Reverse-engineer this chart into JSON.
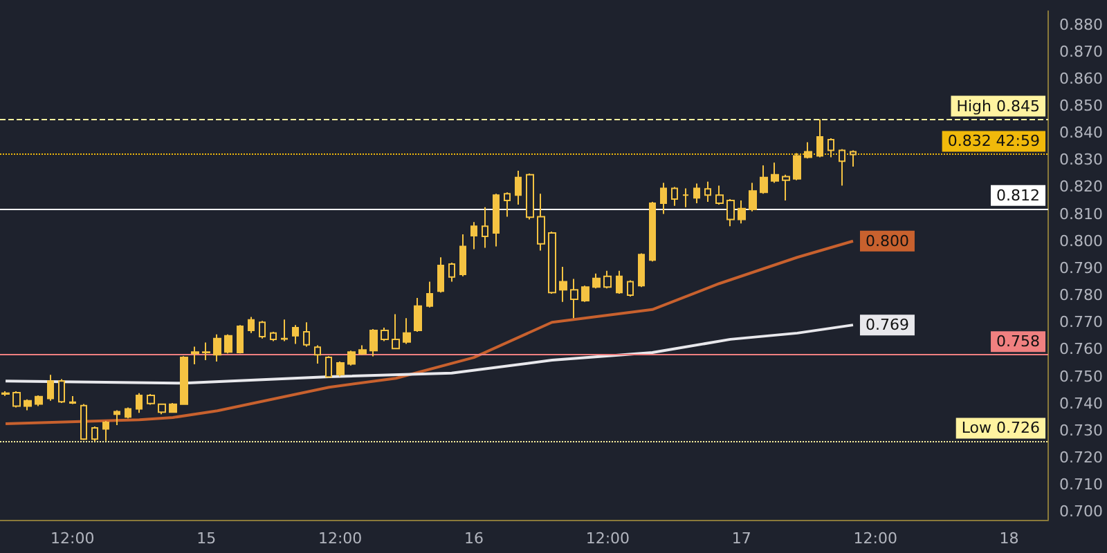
{
  "chart_data": {
    "type": "candlestick",
    "color": "#f5c342",
    "categories": [
      null,
      null,
      null,
      null,
      null,
      null,
      "12:00",
      null,
      null,
      null,
      null,
      null,
      null,
      null,
      null,
      null,
      null,
      null,
      "15",
      null,
      null,
      null,
      null,
      null,
      null,
      null,
      null,
      null,
      null,
      null,
      "12:00",
      null,
      null,
      null,
      null,
      null,
      null,
      null,
      null,
      null,
      null,
      null,
      "16",
      null,
      null,
      null,
      null,
      null,
      null,
      null,
      null,
      null,
      null,
      null,
      "12:00",
      null,
      null,
      null,
      null,
      null,
      null,
      null,
      null,
      null,
      null,
      null,
      "17",
      null,
      null,
      null,
      null,
      null,
      null,
      null,
      null,
      null,
      null,
      null,
      "12:00",
      null,
      null,
      null,
      null,
      null,
      null,
      null,
      null,
      null,
      null,
      null,
      "18",
      null,
      null,
      null
    ],
    "ohlc": [
      [
        0.7435,
        0.7445,
        0.7428,
        0.7438
      ],
      [
        0.744,
        0.7445,
        0.7385,
        0.739
      ],
      [
        0.739,
        0.7415,
        0.7375,
        0.741
      ],
      [
        0.7398,
        0.743,
        0.739,
        0.7425
      ],
      [
        0.7418,
        0.7506,
        0.741,
        0.7483
      ],
      [
        0.7483,
        0.749,
        0.7402,
        0.7406
      ],
      [
        0.7405,
        0.7427,
        0.7398,
        0.7402
      ],
      [
        0.7392,
        0.7398,
        0.7265,
        0.7268
      ],
      [
        0.731,
        0.7315,
        0.726,
        0.7268
      ],
      [
        0.7306,
        0.7335,
        0.7262,
        0.733
      ],
      [
        0.736,
        0.7375,
        0.732,
        0.737
      ],
      [
        0.735,
        0.7385,
        0.7345,
        0.738
      ],
      [
        0.738,
        0.7438,
        0.7365,
        0.743
      ],
      [
        0.743,
        0.7435,
        0.7395,
        0.74
      ],
      [
        0.7397,
        0.74,
        0.736,
        0.7368
      ],
      [
        0.7368,
        0.7402,
        0.7365,
        0.7397
      ],
      [
        0.7397,
        0.7575,
        0.7395,
        0.757
      ],
      [
        0.7585,
        0.761,
        0.7545,
        0.759
      ],
      [
        0.759,
        0.7625,
        0.756,
        0.7588
      ],
      [
        0.758,
        0.7655,
        0.7555,
        0.764
      ],
      [
        0.759,
        0.7655,
        0.7585,
        0.765
      ],
      [
        0.7588,
        0.769,
        0.7585,
        0.7685
      ],
      [
        0.767,
        0.772,
        0.766,
        0.7709
      ],
      [
        0.77,
        0.7705,
        0.764,
        0.7647
      ],
      [
        0.766,
        0.7665,
        0.763,
        0.7637
      ],
      [
        0.7638,
        0.771,
        0.763,
        0.764
      ],
      [
        0.765,
        0.769,
        0.762,
        0.768
      ],
      [
        0.7665,
        0.77,
        0.761,
        0.7617
      ],
      [
        0.7608,
        0.7615,
        0.7547,
        0.758
      ],
      [
        0.757,
        0.7575,
        0.7495,
        0.7498
      ],
      [
        0.7507,
        0.7555,
        0.75,
        0.755
      ],
      [
        0.7546,
        0.7595,
        0.754,
        0.759
      ],
      [
        0.7584,
        0.7615,
        0.758,
        0.7598
      ],
      [
        0.7595,
        0.7675,
        0.7574,
        0.767
      ],
      [
        0.767,
        0.768,
        0.763,
        0.7637
      ],
      [
        0.7637,
        0.773,
        0.76,
        0.7603
      ],
      [
        0.7627,
        0.7715,
        0.762,
        0.766
      ],
      [
        0.767,
        0.779,
        0.7665,
        0.776
      ],
      [
        0.776,
        0.785,
        0.7755,
        0.7805
      ],
      [
        0.7815,
        0.794,
        0.781,
        0.791
      ],
      [
        0.7915,
        0.792,
        0.785,
        0.7867
      ],
      [
        0.7877,
        0.8025,
        0.787,
        0.798
      ],
      [
        0.802,
        0.807,
        0.797,
        0.8055
      ],
      [
        0.8055,
        0.8125,
        0.7975,
        0.8017
      ],
      [
        0.803,
        0.8175,
        0.798,
        0.817
      ],
      [
        0.8175,
        0.818,
        0.809,
        0.815
      ],
      [
        0.817,
        0.826,
        0.8135,
        0.8235
      ],
      [
        0.8245,
        0.825,
        0.808,
        0.8088
      ],
      [
        0.809,
        0.8175,
        0.7965,
        0.799
      ],
      [
        0.803,
        0.8035,
        0.7805,
        0.781
      ],
      [
        0.782,
        0.7905,
        0.7775,
        0.785
      ],
      [
        0.782,
        0.786,
        0.7715,
        0.7785
      ],
      [
        0.778,
        0.7835,
        0.7775,
        0.783
      ],
      [
        0.783,
        0.788,
        0.7825,
        0.7862
      ],
      [
        0.787,
        0.789,
        0.7825,
        0.783
      ],
      [
        0.781,
        0.789,
        0.7805,
        0.787
      ],
      [
        0.785,
        0.7855,
        0.7795,
        0.78
      ],
      [
        0.7835,
        0.7955,
        0.783,
        0.795
      ],
      [
        0.793,
        0.8145,
        0.7925,
        0.814
      ],
      [
        0.814,
        0.8215,
        0.81,
        0.8195
      ],
      [
        0.8195,
        0.82,
        0.813,
        0.8155
      ],
      [
        0.817,
        0.8195,
        0.8125,
        0.817
      ],
      [
        0.816,
        0.8213,
        0.814,
        0.8195
      ],
      [
        0.8193,
        0.822,
        0.8145,
        0.817
      ],
      [
        0.817,
        0.8205,
        0.8135,
        0.814
      ],
      [
        0.815,
        0.8155,
        0.8055,
        0.808
      ],
      [
        0.808,
        0.815,
        0.8065,
        0.812
      ],
      [
        0.8117,
        0.8215,
        0.811,
        0.8185
      ],
      [
        0.818,
        0.828,
        0.8175,
        0.8235
      ],
      [
        0.8222,
        0.829,
        0.8215,
        0.8245
      ],
      [
        0.8238,
        0.8245,
        0.815,
        0.8225
      ],
      [
        0.823,
        0.8325,
        0.8225,
        0.8315
      ],
      [
        0.831,
        0.8365,
        0.8305,
        0.833
      ],
      [
        0.8315,
        0.845,
        0.831,
        0.8385
      ],
      [
        0.8375,
        0.838,
        0.831,
        0.8335
      ],
      [
        0.8335,
        0.834,
        0.8205,
        0.8295
      ],
      [
        0.833,
        0.8335,
        0.8275,
        0.832
      ],
      null,
      null,
      null,
      null,
      null,
      null,
      null,
      null,
      null,
      null,
      null,
      null,
      null,
      null,
      null,
      null,
      null
    ],
    "series": [
      {
        "type": "line",
        "color": "#c8612e",
        "values": [
          0.7325,
          null,
          null,
          null,
          null,
          null,
          null,
          null,
          null,
          null,
          null,
          null,
          0.734,
          null,
          null,
          0.7348,
          null,
          null,
          null,
          0.7373,
          null,
          null,
          null,
          null,
          null,
          null,
          null,
          null,
          null,
          0.746,
          null,
          null,
          null,
          null,
          null,
          0.7493,
          null,
          null,
          null,
          null,
          null,
          null,
          0.757,
          null,
          null,
          null,
          null,
          null,
          null,
          0.77,
          null,
          null,
          null,
          null,
          null,
          null,
          null,
          null,
          0.7747,
          null,
          null,
          null,
          null,
          null,
          0.7843,
          null,
          null,
          null,
          null,
          null,
          null,
          0.794,
          null,
          null,
          null,
          null,
          0.8,
          null,
          null,
          null,
          null,
          null,
          null,
          null,
          null,
          null,
          null,
          null,
          null,
          null,
          null,
          null,
          null,
          null
        ],
        "value_labels": [
          null,
          null,
          null,
          null,
          null,
          null,
          null,
          null,
          null,
          null,
          null,
          null,
          null,
          null,
          null,
          null,
          null,
          null,
          null,
          null,
          null,
          null,
          null,
          null,
          null,
          null,
          null,
          null,
          null,
          null,
          null,
          null,
          null,
          null,
          null,
          null,
          null,
          null,
          null,
          null,
          null,
          null,
          null,
          null,
          null,
          null,
          null,
          null,
          null,
          null,
          null,
          null,
          null,
          null,
          null,
          null,
          null,
          null,
          null,
          null,
          null,
          null,
          null,
          null,
          null,
          null,
          null,
          null,
          null,
          null,
          null,
          null,
          null,
          null,
          null,
          null,
          "0.800",
          null,
          null,
          null,
          null,
          null,
          null,
          null,
          null,
          null,
          null,
          null,
          null,
          null,
          null,
          null,
          null,
          null
        ]
      },
      {
        "type": "line",
        "color": "#e8e8ec",
        "values": [
          0.7483,
          null,
          null,
          null,
          null,
          null,
          null,
          null,
          null,
          null,
          null,
          null,
          null,
          null,
          null,
          null,
          0.7475,
          null,
          null,
          null,
          null,
          null,
          null,
          null,
          null,
          null,
          null,
          null,
          null,
          0.7499,
          null,
          null,
          null,
          null,
          null,
          null,
          null,
          null,
          null,
          null,
          0.7512,
          null,
          null,
          null,
          null,
          null,
          null,
          null,
          null,
          0.756,
          null,
          null,
          null,
          null,
          null,
          null,
          null,
          null,
          0.7588,
          null,
          null,
          null,
          null,
          null,
          null,
          0.7637,
          null,
          null,
          null,
          null,
          null,
          0.766,
          null,
          null,
          null,
          null,
          0.769,
          null,
          null,
          null,
          null,
          null,
          null,
          null,
          null,
          null,
          null,
          null,
          null,
          null,
          null,
          null,
          null,
          null
        ],
        "value_labels": [
          null,
          null,
          null,
          null,
          null,
          null,
          null,
          null,
          null,
          null,
          null,
          null,
          null,
          null,
          null,
          null,
          null,
          null,
          null,
          null,
          null,
          null,
          null,
          null,
          null,
          null,
          null,
          null,
          null,
          null,
          null,
          null,
          null,
          null,
          null,
          null,
          null,
          null,
          null,
          null,
          null,
          null,
          null,
          null,
          null,
          null,
          null,
          null,
          null,
          null,
          null,
          null,
          null,
          null,
          null,
          null,
          null,
          null,
          null,
          null,
          null,
          null,
          null,
          null,
          null,
          null,
          null,
          null,
          null,
          null,
          null,
          null,
          null,
          null,
          null,
          null,
          "0.769",
          null,
          null,
          null,
          null,
          null,
          null,
          null,
          null,
          null,
          null,
          null,
          null,
          null,
          null,
          null,
          null,
          null
        ]
      }
    ],
    "ylim": [
      0.697,
      0.885
    ],
    "yticks": [
      {
        "value": 0.7,
        "label": "0.700"
      },
      {
        "value": 0.71,
        "label": "0.710"
      },
      {
        "value": 0.72,
        "label": "0.720"
      },
      {
        "value": 0.73,
        "label": "0.730"
      },
      {
        "value": 0.74,
        "label": "0.740"
      },
      {
        "value": 0.75,
        "label": "0.750"
      },
      {
        "value": 0.76,
        "label": "0.760"
      },
      {
        "value": 0.77,
        "label": "0.770"
      },
      {
        "value": 0.78,
        "label": "0.780"
      },
      {
        "value": 0.79,
        "label": "0.790"
      },
      {
        "value": 0.8,
        "label": "0.800"
      },
      {
        "value": 0.81,
        "label": "0.810"
      },
      {
        "value": 0.82,
        "label": "0.820"
      },
      {
        "value": 0.83,
        "label": "0.830"
      },
      {
        "value": 0.84,
        "label": "0.840"
      },
      {
        "value": 0.85,
        "label": "0.850"
      },
      {
        "value": 0.86,
        "label": "0.860"
      },
      {
        "value": 0.87,
        "label": "0.870"
      },
      {
        "value": 0.88,
        "label": "0.880"
      }
    ],
    "ref_lines": [
      {
        "axis": "y",
        "value": 0.845,
        "label": "High 0.845",
        "color": "#fff3a0",
        "line_style": "dashed"
      },
      {
        "axis": "y",
        "value": 0.832,
        "label": "0.832 42:59",
        "color": "#f0b90b",
        "line_style": "dotted"
      },
      {
        "axis": "y",
        "value": 0.812,
        "label": "0.812",
        "color": "#ffffff",
        "line_style": "solid"
      },
      {
        "axis": "y",
        "value": 0.758,
        "label": "0.758",
        "color": "#f08080",
        "line_style": "solid"
      },
      {
        "axis": "y",
        "value": 0.726,
        "label": "Low 0.726",
        "color": "#fff3a0",
        "line_style": "dotted"
      }
    ],
    "grid": false
  }
}
